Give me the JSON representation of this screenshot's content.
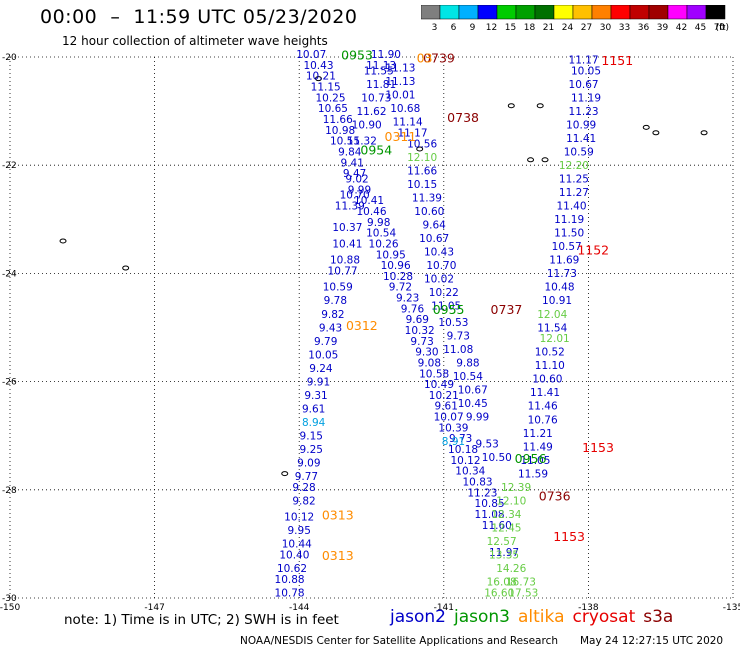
{
  "header": {
    "title": "00:00  –  11:59 UTC 05/23/2020",
    "subtitle": "12 hour collection of altimeter wave heights"
  },
  "colorbar": {
    "unit": "(ft)",
    "ticks": [
      "3",
      "6",
      "9",
      "12",
      "15",
      "18",
      "21",
      "24",
      "27",
      "30",
      "33",
      "36",
      "39",
      "42",
      "45",
      "70"
    ],
    "colors": [
      "#7f7f7f",
      "#00e5e5",
      "#00b0ff",
      "#0000ff",
      "#00cc00",
      "#00a000",
      "#007000",
      "#ffff00",
      "#ffc000",
      "#ff8000",
      "#ff0000",
      "#c00000",
      "#a00000",
      "#ff00ff",
      "#a000ff",
      "#000000"
    ]
  },
  "map": {
    "lon_range": [
      -150,
      -135
    ],
    "lat_range": [
      -30,
      -20
    ],
    "lon_ticks": [
      "-150",
      "-147",
      "-144",
      "-141",
      "-138",
      "-135"
    ],
    "lat_ticks": [
      "-20",
      "-22",
      "-24",
      "-26",
      "-28",
      "-30"
    ],
    "grid": "dotted"
  },
  "satellite_colors": {
    "jason2": "#0000c8",
    "jason3": "#009600",
    "altika": "#ff8c00",
    "cryosat": "#e60000",
    "s3a": "#8b0000",
    "high": "#66cc44",
    "cyan": "#00a0e0"
  },
  "passes": [
    {
      "text": "0953",
      "sat": "jason3",
      "lon": -142.8,
      "lat": -20.05
    },
    {
      "text": "0739",
      "sat": "s3a",
      "lon": -141.1,
      "lat": -20.1
    },
    {
      "text": "03",
      "sat": "altika",
      "lon": -141.4,
      "lat": -20.1
    },
    {
      "text": "0738",
      "sat": "s3a",
      "lon": -140.6,
      "lat": -21.2
    },
    {
      "text": "0311",
      "sat": "altika",
      "lon": -141.9,
      "lat": -21.55
    },
    {
      "text": "0954",
      "sat": "jason3",
      "lon": -142.4,
      "lat": -21.8
    },
    {
      "text": "1151",
      "sat": "cryosat",
      "lon": -137.4,
      "lat": -20.15
    },
    {
      "text": "1152",
      "sat": "cryosat",
      "lon": -137.9,
      "lat": -23.65
    },
    {
      "text": "0955",
      "sat": "jason3",
      "lon": -140.9,
      "lat": -24.75
    },
    {
      "text": "0737",
      "sat": "s3a",
      "lon": -139.7,
      "lat": -24.75
    },
    {
      "text": "0312",
      "sat": "altika",
      "lon": -142.7,
      "lat": -25.05
    },
    {
      "text": "1153",
      "sat": "cryosat",
      "lon": -137.8,
      "lat": -27.3
    },
    {
      "text": "0956",
      "sat": "jason3",
      "lon": -139.2,
      "lat": -27.5
    },
    {
      "text": "0736",
      "sat": "s3a",
      "lon": -138.7,
      "lat": -28.2
    },
    {
      "text": "0313",
      "sat": "altika",
      "lon": -143.2,
      "lat": -28.55
    },
    {
      "text": "1153",
      "sat": "cryosat",
      "lon": -138.4,
      "lat": -28.95
    },
    {
      "text": "0313",
      "sat": "altika",
      "lon": -143.2,
      "lat": -29.3
    }
  ],
  "track_jason2_west": {
    "sat": "jason2",
    "points": [
      {
        "v": "10.07",
        "lon": -143.75,
        "lat": -20.02
      },
      {
        "v": "10.43",
        "lon": -143.6,
        "lat": -20.22
      },
      {
        "v": "10.21",
        "lon": -143.55,
        "lat": -20.42
      },
      {
        "v": "11.15",
        "lon": -143.45,
        "lat": -20.62
      },
      {
        "v": "10.25",
        "lon": -143.35,
        "lat": -20.82
      },
      {
        "v": "10.65",
        "lon": -143.3,
        "lat": -21.02
      },
      {
        "v": "11.66",
        "lon": -143.2,
        "lat": -21.22
      },
      {
        "v": "10.98",
        "lon": -143.15,
        "lat": -21.42
      },
      {
        "v": "10.55",
        "lon": -143.05,
        "lat": -21.62
      },
      {
        "v": "9.84",
        "lon": -142.95,
        "lat": -21.82
      },
      {
        "v": "9.41",
        "lon": -142.9,
        "lat": -22.02
      },
      {
        "v": "9.47",
        "lon": -142.85,
        "lat": -22.22
      },
      {
        "v": "10.70",
        "lon": -142.85,
        "lat": -22.62
      },
      {
        "v": "11.39",
        "lon": -142.95,
        "lat": -22.82
      },
      {
        "v": "10.37",
        "lon": -143.0,
        "lat": -23.22
      },
      {
        "v": "10.41",
        "lon": -143.0,
        "lat": -23.52
      },
      {
        "v": "10.88",
        "lon": -143.05,
        "lat": -23.82
      },
      {
        "v": "10.77",
        "lon": -143.1,
        "lat": -24.02
      },
      {
        "v": "10.59",
        "lon": -143.2,
        "lat": -24.32
      },
      {
        "v": "9.78",
        "lon": -143.25,
        "lat": -24.57
      },
      {
        "v": "9.82",
        "lon": -143.3,
        "lat": -24.82
      },
      {
        "v": "9.43",
        "lon": -143.35,
        "lat": -25.07
      },
      {
        "v": "9.79",
        "lon": -143.45,
        "lat": -25.32
      },
      {
        "v": "10.05",
        "lon": -143.5,
        "lat": -25.57
      },
      {
        "v": "9.24",
        "lon": -143.55,
        "lat": -25.82
      },
      {
        "v": "9.91",
        "lon": -143.6,
        "lat": -26.07
      },
      {
        "v": "9.31",
        "lon": -143.65,
        "lat": -26.32
      },
      {
        "v": "9.61",
        "lon": -143.7,
        "lat": -26.57
      },
      {
        "v": "9.15",
        "lon": -143.75,
        "lat": -27.07
      },
      {
        "v": "9.25",
        "lon": -143.75,
        "lat": -27.32
      },
      {
        "v": "9.09",
        "lon": -143.8,
        "lat": -27.57
      },
      {
        "v": "9.77",
        "lon": -143.85,
        "lat": -27.82
      },
      {
        "v": "9.28",
        "lon": -143.9,
        "lat": -28.02
      },
      {
        "v": "9.82",
        "lon": -143.9,
        "lat": -28.27
      },
      {
        "v": "10.12",
        "lon": -144.0,
        "lat": -28.57
      },
      {
        "v": "9.95",
        "lon": -144.0,
        "lat": -28.82
      },
      {
        "v": "10.44",
        "lon": -144.05,
        "lat": -29.07
      },
      {
        "v": "10.40",
        "lon": -144.1,
        "lat": -29.27
      },
      {
        "v": "10.62",
        "lon": -144.15,
        "lat": -29.52
      },
      {
        "v": "10.88",
        "lon": -144.2,
        "lat": -29.72
      },
      {
        "v": "10.78",
        "lon": -144.2,
        "lat": -29.97
      }
    ]
  },
  "track_jason2_mid": {
    "sat": "jason2",
    "points": [
      {
        "v": "11.90",
        "lon": -142.2,
        "lat": -20.02
      },
      {
        "v": "11.13",
        "lon": -142.3,
        "lat": -20.22
      },
      {
        "v": "11.55",
        "lon": -142.35,
        "lat": -20.32
      },
      {
        "v": "11.13",
        "lon": -141.9,
        "lat": -20.27
      },
      {
        "v": "11.81",
        "lon": -142.3,
        "lat": -20.57
      },
      {
        "v": "11.13",
        "lon": -141.9,
        "lat": -20.52
      },
      {
        "v": "10.73",
        "lon": -142.4,
        "lat": -20.82
      },
      {
        "v": "10.01",
        "lon": -141.9,
        "lat": -20.77
      },
      {
        "v": "11.62",
        "lon": -142.5,
        "lat": -21.07
      },
      {
        "v": "10.68",
        "lon": -141.8,
        "lat": -21.02
      },
      {
        "v": "10.90",
        "lon": -142.6,
        "lat": -21.32
      },
      {
        "v": "11.14",
        "lon": -141.75,
        "lat": -21.27
      },
      {
        "v": "11.32",
        "lon": -142.7,
        "lat": -21.62
      },
      {
        "v": "11.17",
        "lon": -141.65,
        "lat": -21.47
      },
      {
        "v": "10.56",
        "lon": -141.45,
        "lat": -21.67
      },
      {
        "v": "11.66",
        "lon": -141.45,
        "lat": -22.17
      },
      {
        "v": "10.15",
        "lon": -141.45,
        "lat": -22.42
      },
      {
        "v": "11.39",
        "lon": -141.35,
        "lat": -22.67
      },
      {
        "v": "10.60",
        "lon": -141.3,
        "lat": -22.92
      },
      {
        "v": "9.64",
        "lon": -141.2,
        "lat": -23.17
      },
      {
        "v": "10.67",
        "lon": -141.2,
        "lat": -23.42
      },
      {
        "v": "10.43",
        "lon": -141.1,
        "lat": -23.67
      },
      {
        "v": "10.70",
        "lon": -141.05,
        "lat": -23.92
      },
      {
        "v": "10.02",
        "lon": -141.1,
        "lat": -24.17
      },
      {
        "v": "10.22",
        "lon": -141.0,
        "lat": -24.42
      },
      {
        "v": "11.05",
        "lon": -140.95,
        "lat": -24.67
      },
      {
        "v": "10.53",
        "lon": -140.8,
        "lat": -24.97
      },
      {
        "v": "9.73",
        "lon": -140.7,
        "lat": -25.22
      },
      {
        "v": "11.08",
        "lon": -140.7,
        "lat": -25.47
      },
      {
        "v": "9.88",
        "lon": -140.5,
        "lat": -25.72
      },
      {
        "v": "10.54",
        "lon": -140.5,
        "lat": -25.97
      },
      {
        "v": "10.67",
        "lon": -140.4,
        "lat": -26.22
      },
      {
        "v": "10.45",
        "lon": -140.4,
        "lat": -26.47
      },
      {
        "v": "9.99",
        "lon": -140.3,
        "lat": -26.72
      },
      {
        "v": "9.53",
        "lon": -140.1,
        "lat": -27.22
      },
      {
        "v": "10.50",
        "lon": -139.9,
        "lat": -27.47
      }
    ]
  },
  "track_jason2_inner": {
    "sat": "jason2",
    "points": [
      {
        "v": "9.02",
        "lon": -142.8,
        "lat": -22.32
      },
      {
        "v": "9.99",
        "lon": -142.75,
        "lat": -22.52
      },
      {
        "v": "10.41",
        "lon": -142.55,
        "lat": -22.72
      },
      {
        "v": "10.46",
        "lon": -142.5,
        "lat": -22.92
      },
      {
        "v": "9.98",
        "lon": -142.35,
        "lat": -23.12
      },
      {
        "v": "10.54",
        "lon": -142.3,
        "lat": -23.32
      },
      {
        "v": "10.26",
        "lon": -142.25,
        "lat": -23.52
      },
      {
        "v": "10.95",
        "lon": -142.1,
        "lat": -23.72
      },
      {
        "v": "10.96",
        "lon": -142.0,
        "lat": -23.92
      },
      {
        "v": "10.28",
        "lon": -141.95,
        "lat": -24.12
      },
      {
        "v": "9.72",
        "lon": -141.9,
        "lat": -24.32
      },
      {
        "v": "9.23",
        "lon": -141.75,
        "lat": -24.52
      },
      {
        "v": "9.76",
        "lon": -141.65,
        "lat": -24.72
      },
      {
        "v": "9.69",
        "lon": -141.55,
        "lat": -24.92
      },
      {
        "v": "10.32",
        "lon": -141.5,
        "lat": -25.12
      },
      {
        "v": "9.73",
        "lon": -141.45,
        "lat": -25.32
      },
      {
        "v": "9.30",
        "lon": -141.35,
        "lat": -25.52
      },
      {
        "v": "9.08",
        "lon": -141.3,
        "lat": -25.72
      },
      {
        "v": "10.58",
        "lon": -141.2,
        "lat": -25.92
      },
      {
        "v": "10.49",
        "lon": -141.1,
        "lat": -26.12
      },
      {
        "v": "10.21",
        "lon": -141.0,
        "lat": -26.32
      },
      {
        "v": "9.61",
        "lon": -140.95,
        "lat": -26.52
      },
      {
        "v": "10.07",
        "lon": -140.9,
        "lat": -26.72
      },
      {
        "v": "10.39",
        "lon": -140.8,
        "lat": -26.92
      },
      {
        "v": "9.73",
        "lon": -140.65,
        "lat": -27.12
      },
      {
        "v": "10.18",
        "lon": -140.6,
        "lat": -27.32
      },
      {
        "v": "10.12",
        "lon": -140.55,
        "lat": -27.52
      },
      {
        "v": "10.34",
        "lon": -140.45,
        "lat": -27.72
      },
      {
        "v": "10.83",
        "lon": -140.3,
        "lat": -27.92
      },
      {
        "v": "11.23",
        "lon": -140.2,
        "lat": -28.12
      },
      {
        "v": "10.85",
        "lon": -140.05,
        "lat": -28.32
      },
      {
        "v": "11.08",
        "lon": -140.05,
        "lat": -28.52
      },
      {
        "v": "11.60",
        "lon": -139.9,
        "lat": -28.72
      },
      {
        "v": "11.97",
        "lon": -139.75,
        "lat": -29.22
      }
    ]
  },
  "track_jason2_east": {
    "sat": "jason2",
    "points": [
      {
        "v": "11.17",
        "lon": -138.1,
        "lat": -20.12
      },
      {
        "v": "10.05",
        "lon": -138.05,
        "lat": -20.32
      },
      {
        "v": "10.67",
        "lon": -138.1,
        "lat": -20.57
      },
      {
        "v": "11.19",
        "lon": -138.05,
        "lat": -20.82
      },
      {
        "v": "11.23",
        "lon": -138.1,
        "lat": -21.07
      },
      {
        "v": "10.99",
        "lon": -138.15,
        "lat": -21.32
      },
      {
        "v": "11.41",
        "lon": -138.15,
        "lat": -21.57
      },
      {
        "v": "10.59",
        "lon": -138.2,
        "lat": -21.82
      },
      {
        "v": "11.25",
        "lon": -138.3,
        "lat": -22.32
      },
      {
        "v": "11.27",
        "lon": -138.3,
        "lat": -22.57
      },
      {
        "v": "11.40",
        "lon": -138.35,
        "lat": -22.82
      },
      {
        "v": "11.19",
        "lon": -138.4,
        "lat": -23.07
      },
      {
        "v": "11.50",
        "lon": -138.4,
        "lat": -23.32
      },
      {
        "v": "10.57",
        "lon": -138.45,
        "lat": -23.57
      },
      {
        "v": "11.69",
        "lon": -138.5,
        "lat": -23.82
      },
      {
        "v": "11.73",
        "lon": -138.55,
        "lat": -24.07
      },
      {
        "v": "10.48",
        "lon": -138.6,
        "lat": -24.32
      },
      {
        "v": "10.91",
        "lon": -138.65,
        "lat": -24.57
      },
      {
        "v": "11.54",
        "lon": -138.75,
        "lat": -25.07
      },
      {
        "v": "10.52",
        "lon": -138.8,
        "lat": -25.52
      },
      {
        "v": "11.10",
        "lon": -138.8,
        "lat": -25.77
      },
      {
        "v": "10.60",
        "lon": -138.85,
        "lat": -26.02
      },
      {
        "v": "11.41",
        "lon": -138.9,
        "lat": -26.27
      },
      {
        "v": "11.46",
        "lon": -138.95,
        "lat": -26.52
      },
      {
        "v": "10.76",
        "lon": -138.95,
        "lat": -26.77
      },
      {
        "v": "11.21",
        "lon": -139.05,
        "lat": -27.02
      },
      {
        "v": "11.49",
        "lon": -139.05,
        "lat": -27.27
      },
      {
        "v": "11.05",
        "lon": -139.1,
        "lat": -27.52
      },
      {
        "v": "11.59",
        "lon": -139.15,
        "lat": -27.77
      }
    ]
  },
  "track_high": {
    "sat": "high",
    "points": [
      {
        "v": "12.10",
        "lon": -141.45,
        "lat": -21.92
      },
      {
        "v": "12.20",
        "lon": -138.3,
        "lat": -22.07
      },
      {
        "v": "12.04",
        "lon": -138.75,
        "lat": -24.82
      },
      {
        "v": "12.01",
        "lon": -138.7,
        "lat": -25.27
      },
      {
        "v": "12.39",
        "lon": -139.5,
        "lat": -28.02
      },
      {
        "v": "12.10",
        "lon": -139.6,
        "lat": -28.27
      },
      {
        "v": "12.34",
        "lon": -139.7,
        "lat": -28.52
      },
      {
        "v": "12.45",
        "lon": -139.7,
        "lat": -28.77
      },
      {
        "v": "12.57",
        "lon": -139.8,
        "lat": -29.02
      },
      {
        "v": "13.35",
        "lon": -139.75,
        "lat": -29.27
      },
      {
        "v": "14.26",
        "lon": -139.6,
        "lat": -29.52
      },
      {
        "v": "16.08",
        "lon": -139.8,
        "lat": -29.77
      },
      {
        "v": "16.60",
        "lon": -139.85,
        "lat": -29.97
      },
      {
        "v": "17.53",
        "lon": -139.35,
        "lat": -29.97
      },
      {
        "v": "16.73",
        "lon": -139.4,
        "lat": -29.77
      }
    ]
  },
  "track_cyan": {
    "sat": "cyan",
    "points": [
      {
        "v": "8.94",
        "lon": -143.7,
        "lat": -26.82
      },
      {
        "v": "8.91",
        "lon": -140.8,
        "lat": -27.17
      }
    ]
  },
  "footer": {
    "note": "note:  1) Time is in UTC;  2) SWH is in feet",
    "legend": [
      {
        "label": "jason2",
        "color": "#0000c8"
      },
      {
        "label": "jason3",
        "color": "#009600"
      },
      {
        "label": "altika",
        "color": "#ff8c00"
      },
      {
        "label": "cryosat",
        "color": "#e60000"
      },
      {
        "label": "s3a",
        "color": "#8b0000"
      }
    ],
    "credit": "NOAA/NESDIS Center for Satellite Applications and Research",
    "timestamp": "May 24 12:27:15 UTC 2020"
  }
}
